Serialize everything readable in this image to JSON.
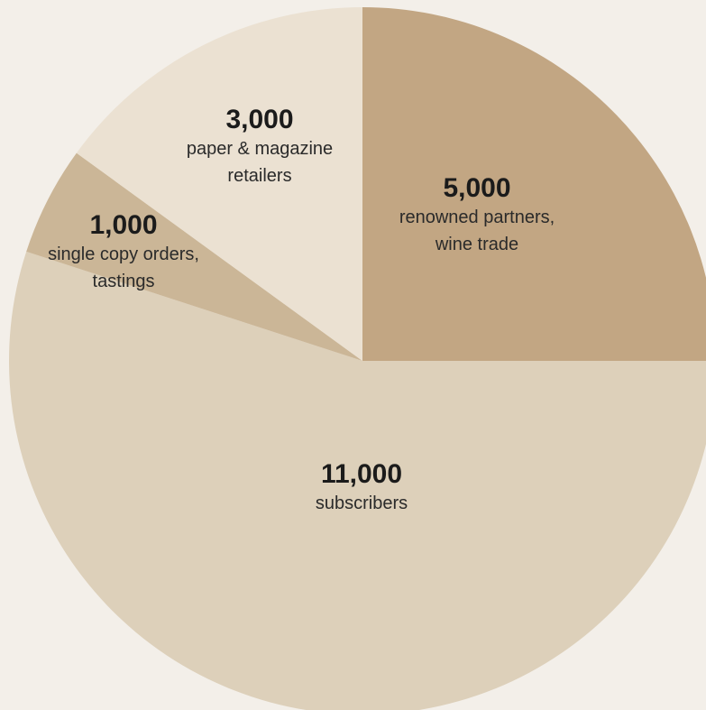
{
  "chart_data": {
    "type": "pie",
    "slices": [
      {
        "value": 5000,
        "value_label": "5,000",
        "label": "renowned partners, wine trade",
        "label_lines": [
          "renowned partners,",
          "wine trade"
        ],
        "color": "#c2a683"
      },
      {
        "value": 11000,
        "value_label": "11,000",
        "label": "subscribers",
        "label_lines": [
          "subscribers"
        ],
        "color": "#ddd0ba"
      },
      {
        "value": 1000,
        "value_label": "1,000",
        "label": "single copy orders, tastings",
        "label_lines": [
          "single copy orders,",
          "tastings"
        ],
        "color": "#cbb697"
      },
      {
        "value": 3000,
        "value_label": "3,000",
        "label": "paper & magazine retailers",
        "label_lines": [
          "paper & magazine",
          "retailers"
        ],
        "color": "#ebe1d2"
      }
    ],
    "start_angle_deg": 0,
    "direction": "clockwise",
    "background": "#f3efe9"
  }
}
